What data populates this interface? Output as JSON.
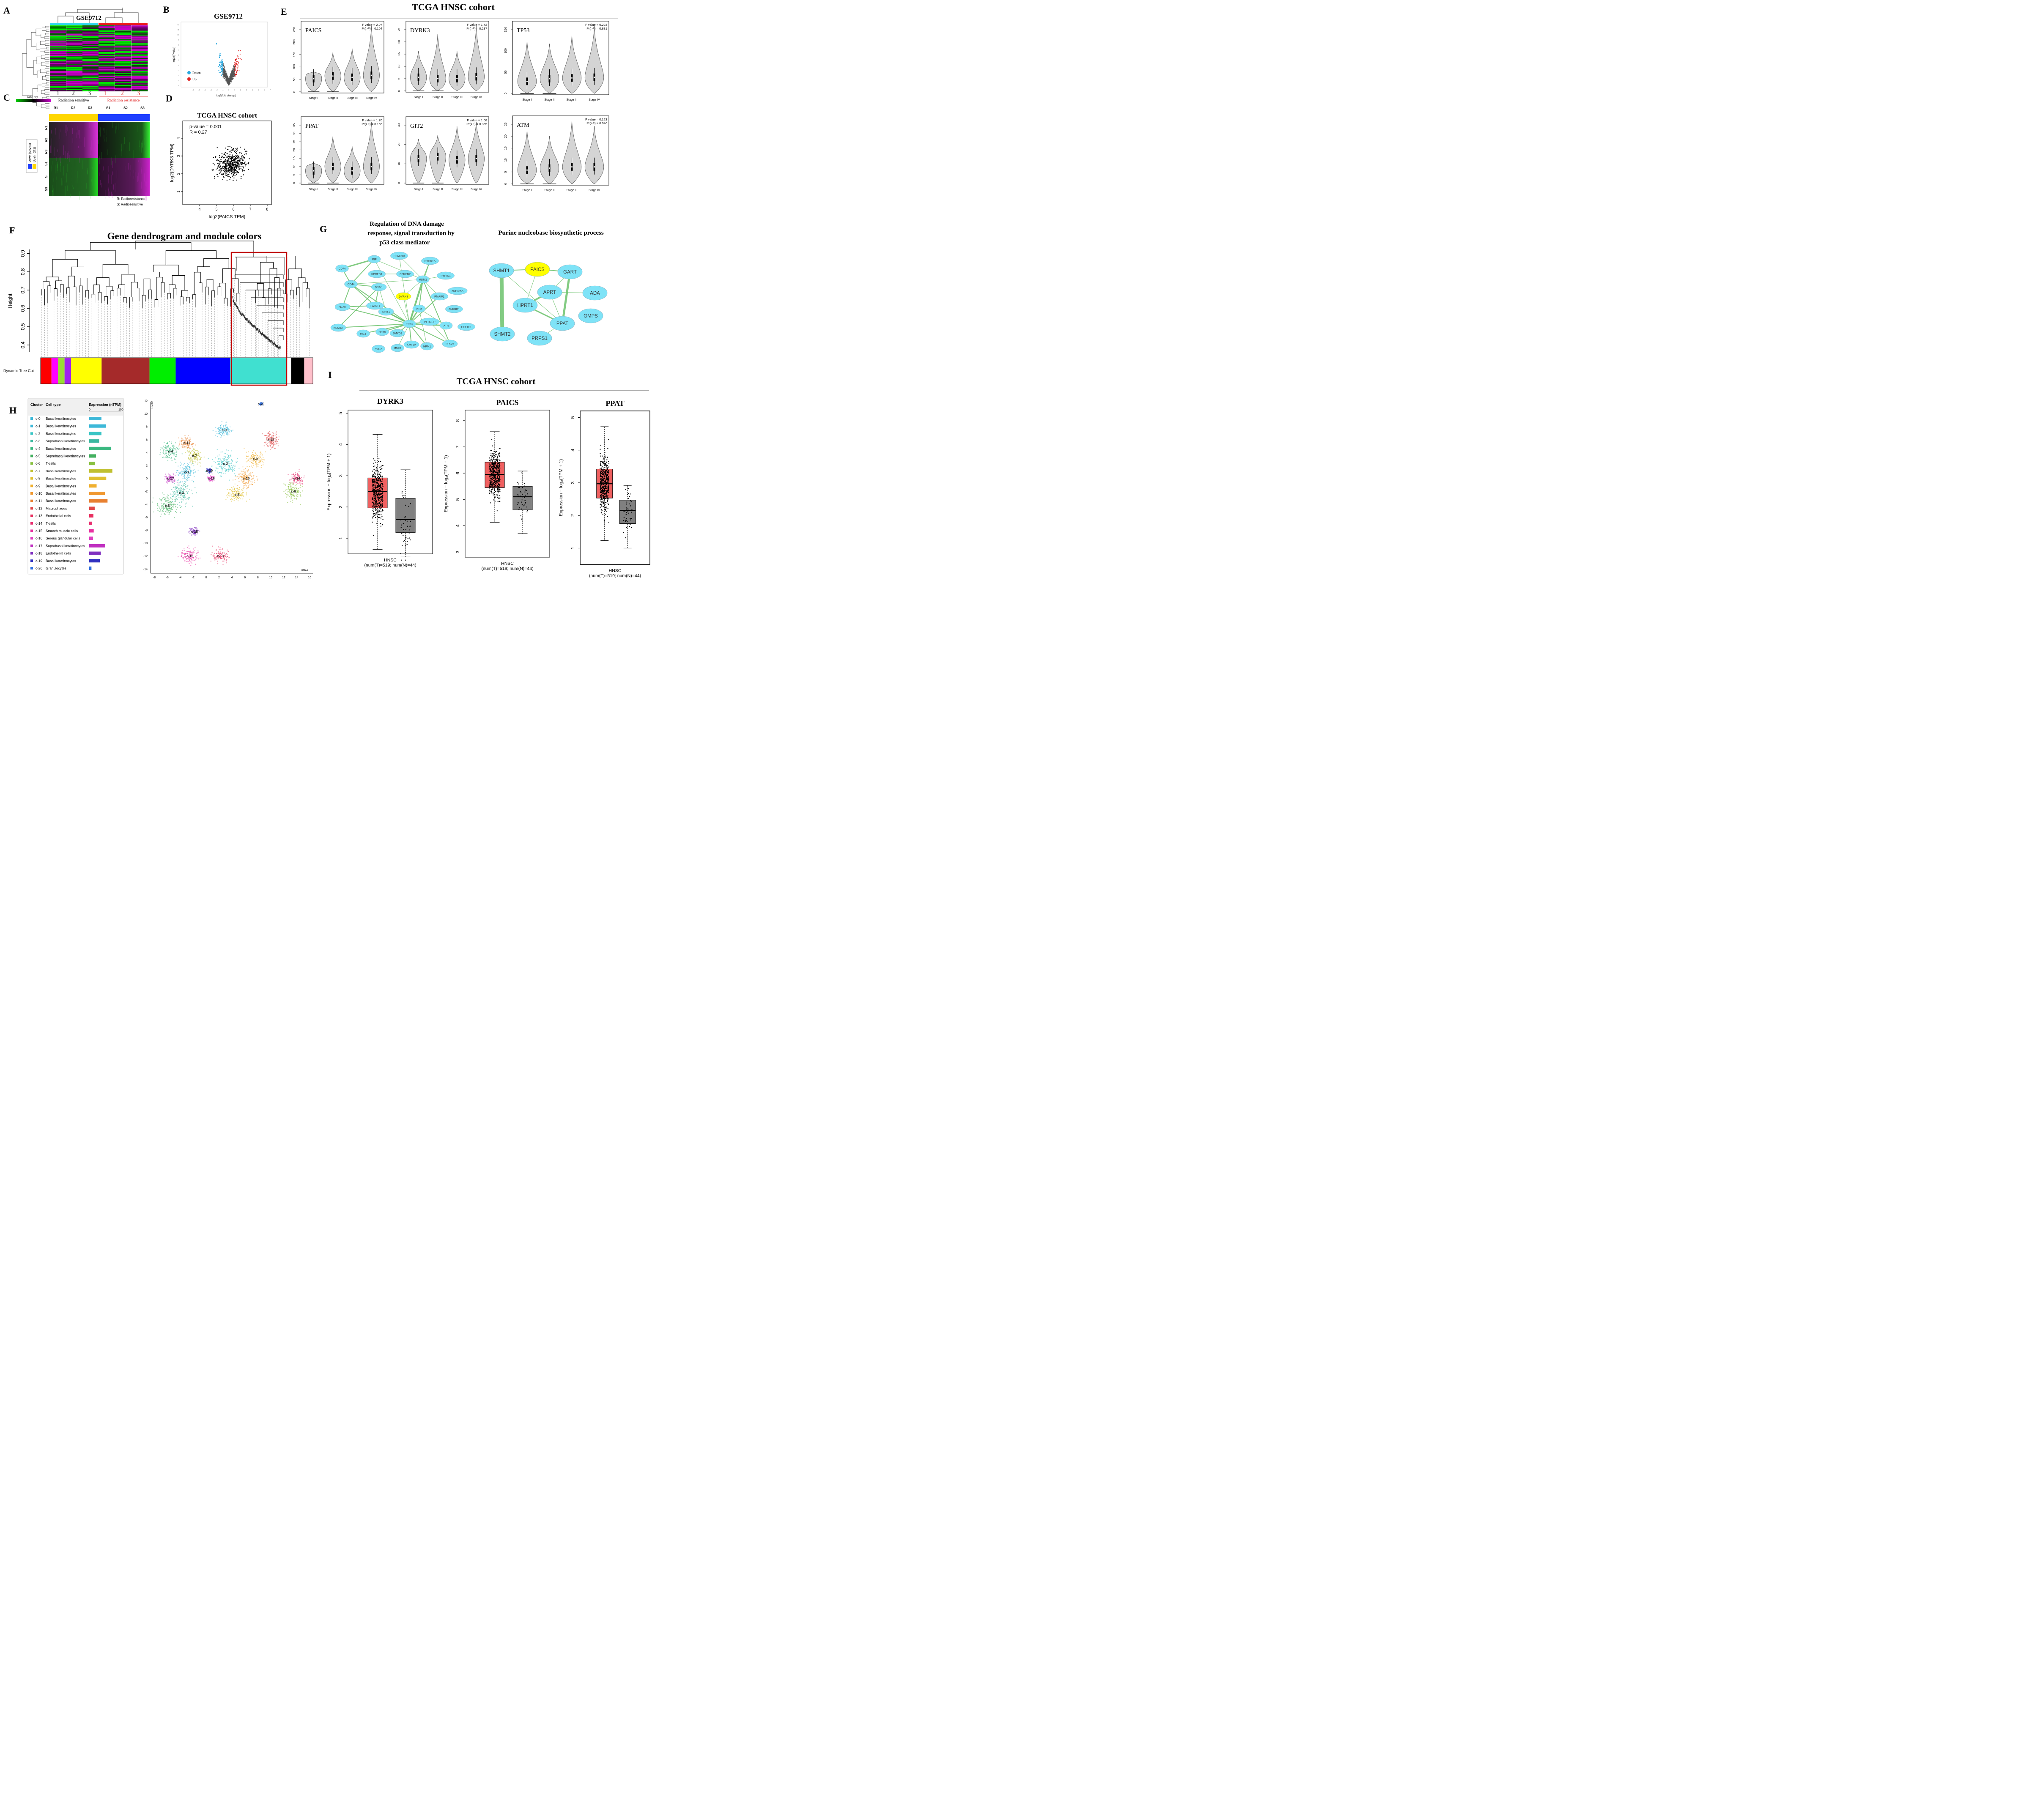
{
  "panel_letters": [
    "A",
    "B",
    "C",
    "D",
    "E",
    "F",
    "G",
    "H",
    "I"
  ],
  "panelA": {
    "dataset": "GSE9712",
    "group_numbers": [
      "1",
      "2",
      "3",
      "1",
      "2",
      "3"
    ],
    "group_labels": [
      "Radiation sensitive",
      "Radiation resistance"
    ]
  },
  "panelC": {
    "color_key": "Color key",
    "columns": [
      "R1",
      "R2",
      "R3",
      "S1",
      "S2",
      "S3"
    ],
    "rows": [
      "R1",
      "R2",
      "R3",
      "S1",
      "S",
      "S3"
    ],
    "legend": [
      "Down (N=274)",
      "Up (N=271)"
    ],
    "notes": [
      "R: Radioresistance",
      "S: Radiosensitive"
    ],
    "colors": {
      "green": "#00cc00",
      "magenta": "#cc00cc",
      "yellow": "#ffd700",
      "blue": "#1f3fff"
    }
  },
  "panelB": {
    "title": "GSE9712",
    "xlabel": "log2(fold change)",
    "ylabel": "-log10(Pvalue)",
    "legend": [
      "Down",
      "Up"
    ],
    "xticks": [
      "-6",
      "-5",
      "-4",
      "-3",
      "-2",
      "-1",
      "0",
      "1",
      "2",
      "3",
      "4",
      "5",
      "6",
      "7"
    ],
    "yticks": [
      "0",
      "1",
      "2",
      "3",
      "4",
      "5",
      "6",
      "7",
      "8",
      "9",
      "10",
      "11",
      "12"
    ],
    "colors": {
      "down": "#29a8e0",
      "up": "#e02020",
      "ns": "#555555"
    }
  },
  "panelD": {
    "title": "TCGA HNSC cohort",
    "stats": [
      "p-value = 0.001",
      "R = 0.27"
    ],
    "xlabel": "log2(PAICS TPM)",
    "ylabel": "log2(DYRK3 TPM)",
    "xticks": [
      "4",
      "5",
      "6",
      "7",
      "8"
    ],
    "yticks": [
      "1",
      "2",
      "3",
      "4"
    ]
  },
  "panelE": {
    "title": "TCGA HNSC cohort",
    "stages": [
      "Stage I",
      "Stage II",
      "Stage III",
      "Stage IV"
    ],
    "genes": [
      {
        "name": "PAICS",
        "f": "F value = 2.07",
        "p": "Pr(>F) = 0.104",
        "yticks": [
          "0",
          "50",
          "100",
          "150",
          "200",
          "250"
        ]
      },
      {
        "name": "DYRK3",
        "f": "F value = 1.42",
        "p": "Pr(>F) = 0.237",
        "yticks": [
          "0",
          "5",
          "10",
          "15",
          "20",
          "25"
        ]
      },
      {
        "name": "TP53",
        "f": "F value = 0.223",
        "p": "Pr(>F) = 0.881",
        "yticks": [
          "0",
          "50",
          "100",
          "150"
        ]
      },
      {
        "name": "PPAT",
        "f": "F value = 1.76",
        "p": "Pr(>F) = 0.155",
        "yticks": [
          "0",
          "5",
          "10",
          "15",
          "20",
          "25",
          "30",
          "35"
        ]
      },
      {
        "name": "GIT2",
        "f": "F value = 1.08",
        "p": "Pr(>F) = 0.355",
        "yticks": [
          "0",
          "10",
          "20",
          "30"
        ]
      },
      {
        "name": "ATM",
        "f": "F value = 0.123",
        "p": "Pr(>F) = 0.946",
        "yticks": [
          "0",
          "5",
          "10",
          "15",
          "20",
          "25"
        ]
      }
    ]
  },
  "panelF": {
    "title": "Gene dendrogram and module colors",
    "ylabel": "Height",
    "yticks": [
      "0.4",
      "0.5",
      "0.6",
      "0.7",
      "0.8",
      "0.9"
    ],
    "track_label": "Dynamic Tree Cut",
    "modules": [
      {
        "color": "#ff0000",
        "w": 2.5
      },
      {
        "color": "#ff00ff",
        "w": 1.5
      },
      {
        "color": "#99dd33",
        "w": 1.5
      },
      {
        "color": "#a020f0",
        "w": 1.5
      },
      {
        "color": "#ffff00",
        "w": 7
      },
      {
        "color": "#a52a2a",
        "w": 11
      },
      {
        "color": "#00ee00",
        "w": 6
      },
      {
        "color": "#0000ff",
        "w": 12.5
      },
      {
        "color": "#40e0d0",
        "w": 13
      },
      {
        "color": "#ffffff",
        "w": 1
      },
      {
        "color": "#000000",
        "w": 3
      },
      {
        "color": "#ffc0cb",
        "w": 2
      }
    ]
  },
  "panelG": {
    "title1": [
      "Regulation of DNA damage",
      "response, signal transduction by",
      "p53 class mediator"
    ],
    "title2": "Purine nucleobase biosynthetic process",
    "net1_nodes": [
      "PSMD10",
      "MIF",
      "DYRK1A",
      "CD74",
      "SPRED1",
      "SPRED2",
      "PYHIN1",
      "CD44",
      "MDM2",
      "SNAI1",
      "ZNF385A",
      "DYRK3",
      "PMAIP1",
      "SNAI2",
      "TWIST1",
      "ATM",
      "ANKRD1",
      "SIRT1",
      "KDM1A",
      "TP53",
      "PTTG1IP",
      "ATR",
      "EEF1E1",
      "HIC1",
      "DDX5",
      "SMYD2",
      "YJU2",
      "MSX1",
      "KMT5A",
      "NPM1",
      "RPL26"
    ],
    "net2_nodes": [
      "SHMT1",
      "PAICS",
      "GART",
      "APRT",
      "ADA",
      "HPRT1",
      "GMPS",
      "PPAT",
      "SHMT2",
      "PRPS1"
    ],
    "colors": {
      "node": "#7fe3f7",
      "highlight": "#ffff00",
      "edge": "#6cc26c"
    }
  },
  "panelH": {
    "headers": [
      "Cluster",
      "Cell type",
      "Expression (nTPM)"
    ],
    "scale": [
      "0",
      "100"
    ],
    "rows": [
      {
        "c": "c-0",
        "t": "Basal keratinocytes",
        "v": 38,
        "col": "#3db8d8"
      },
      {
        "c": "c-1",
        "t": "Basal keratinocytes",
        "v": 52,
        "col": "#3db8d8"
      },
      {
        "c": "c-2",
        "t": "Basal keratinocytes",
        "v": 38,
        "col": "#3ac5c5"
      },
      {
        "c": "c-3",
        "t": "Suprabasal keratinocytes",
        "v": 31,
        "col": "#3ab8a0"
      },
      {
        "c": "c-4",
        "t": "Basal keratinocytes",
        "v": 68,
        "col": "#3ab880"
      },
      {
        "c": "c-5",
        "t": "Suprabasal keratinocytes",
        "v": 21,
        "col": "#44b060"
      },
      {
        "c": "c-6",
        "t": "T-cells",
        "v": 18,
        "col": "#88c040"
      },
      {
        "c": "c-7",
        "t": "Basal keratinocytes",
        "v": 72,
        "col": "#c0c030"
      },
      {
        "c": "c-8",
        "t": "Basal keratinocytes",
        "v": 53,
        "col": "#e0c030"
      },
      {
        "c": "c-9",
        "t": "Basal keratinocytes",
        "v": 23,
        "col": "#f0b030"
      },
      {
        "c": "c-10",
        "t": "Basal keratinocytes",
        "v": 49,
        "col": "#f09830"
      },
      {
        "c": "c-11",
        "t": "Basal keratinocytes",
        "v": 57,
        "col": "#e88030"
      },
      {
        "c": "c-12",
        "t": "Macrophages",
        "v": 17,
        "col": "#e04848"
      },
      {
        "c": "c-13",
        "t": "Endothelial cells",
        "v": 13,
        "col": "#e83060"
      },
      {
        "c": "c-14",
        "t": "T-cells",
        "v": 9,
        "col": "#e83070"
      },
      {
        "c": "c-15",
        "t": "Smooth muscle cells",
        "v": 14,
        "col": "#e830a0"
      },
      {
        "c": "c-16",
        "t": "Serous glandular cells",
        "v": 12,
        "col": "#e040c0"
      },
      {
        "c": "c-17",
        "t": "Suprabasal keratinocytes",
        "v": 50,
        "col": "#c030c0"
      },
      {
        "c": "c-18",
        "t": "Endothelial cells",
        "v": 36,
        "col": "#8030c0"
      },
      {
        "c": "c-19",
        "t": "Basal keratinocytes",
        "v": 33,
        "col": "#3030c0"
      },
      {
        "c": "c-20",
        "t": "Granulocytes",
        "v": 7,
        "col": "#3070e0"
      }
    ],
    "umap_label": "UMAP",
    "umap_xticks": [
      "-8",
      "-6",
      "-4",
      "-2",
      "0",
      "2",
      "4",
      "6",
      "8",
      "10",
      "12",
      "14",
      "16"
    ],
    "umap_yticks": [
      "12",
      "10",
      "8",
      "6",
      "4",
      "2",
      "0",
      "-2",
      "-4",
      "-6",
      "-8",
      "-10",
      "-12",
      "-14"
    ],
    "clusters": [
      "c-20",
      "c-0",
      "c-12",
      "c-11",
      "c-4",
      "c-7",
      "c-9",
      "c-1",
      "c-2",
      "c-19",
      "c-17",
      "c-16",
      "c-10",
      "c-14",
      "c-3",
      "c-6",
      "c-8",
      "c-5",
      "c-18",
      "c-15",
      "c-13"
    ]
  },
  "panelI": {
    "title": "TCGA HNSC cohort",
    "ylabel": "Expression − log₂(TPM + 1)",
    "xlabel": "HNSC",
    "counts": "(num(T)=519; num(N)=44)",
    "colors": {
      "tumor": "#f06060",
      "normal": "#808080"
    },
    "plots": [
      {
        "gene": "DYRK3",
        "yticks": [
          "1",
          "2",
          "3",
          "4",
          "5"
        ]
      },
      {
        "gene": "PAICS",
        "yticks": [
          "3",
          "4",
          "5",
          "6",
          "7",
          "8"
        ]
      },
      {
        "gene": "PPAT",
        "yticks": [
          "1",
          "2",
          "3",
          "4",
          "5"
        ]
      }
    ]
  },
  "chart_data": [
    {
      "type": "line",
      "title": "Gene dendrogram and module colors",
      "ylabel": "Height",
      "ylim": [
        0.35,
        0.95
      ]
    },
    {
      "type": "scatter",
      "title": "TCGA HNSC cohort",
      "xlabel": "log2(PAICS TPM)",
      "ylabel": "log2(DYRK3 TPM)",
      "xlim": [
        3.3,
        8.3
      ],
      "ylim": [
        0.4,
        4.9
      ]
    },
    {
      "type": "bar",
      "title": "",
      "categories": [
        "Stage I",
        "Stage II",
        "Stage III",
        "Stage IV"
      ],
      "series": [
        {
          "name": "PAICS",
          "values": [
            55,
            60,
            52,
            62
          ]
        },
        {
          "name": "DYRK3",
          "values": [
            5,
            5,
            4.5,
            5
          ]
        },
        {
          "name": "TP53",
          "values": [
            25,
            30,
            32,
            33
          ]
        },
        {
          "name": "PPAT",
          "values": [
            6,
            8,
            6,
            8
          ]
        },
        {
          "name": "GIT2",
          "values": [
            12,
            12,
            11,
            12
          ]
        },
        {
          "name": "ATM",
          "values": [
            5,
            6,
            6,
            6
          ]
        }
      ]
    },
    {
      "type": "bar",
      "title": "TCGA HNSC cohort",
      "categories": [
        "DYRK3",
        "PAICS",
        "PPAT"
      ],
      "series": [
        {
          "values": [
            2.5,
            5.95,
            2.97
          ]
        },
        {
          "values": [
            1.6,
            5.1,
            2.15
          ]
        }
      ]
    }
  ]
}
